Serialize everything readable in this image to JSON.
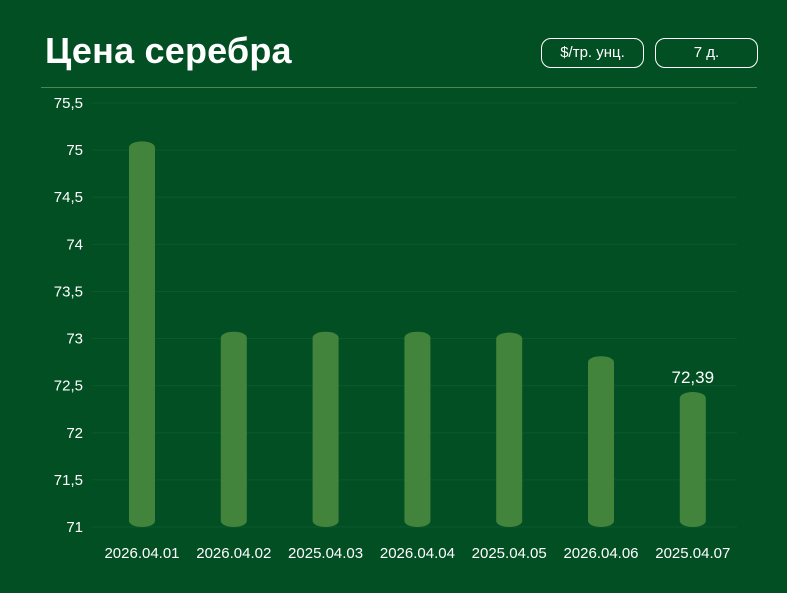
{
  "header": {
    "title": "Цена серебра",
    "unit_button": "$/тр. унц.",
    "range_button": "7 д."
  },
  "colors": {
    "background": "#024f24",
    "bar": "#43843c",
    "grid": "#0a5a2a",
    "text": "#ffffff",
    "divider": "#4a8a4a"
  },
  "chart_data": {
    "type": "bar",
    "title": "Цена серебра",
    "xlabel": "",
    "ylabel": "",
    "categories": [
      "2026.04.01",
      "2026.04.02",
      "2025.04.03",
      "2026.04.04",
      "2025.04.05",
      "2026.04.06",
      "2025.04.07"
    ],
    "values": [
      75.05,
      73.03,
      73.03,
      73.03,
      73.02,
      72.77,
      72.39
    ],
    "ylim": [
      71,
      75.5
    ],
    "yticks": [
      "71",
      "71,5",
      "72",
      "72,5",
      "73",
      "73,5",
      "74",
      "74,5",
      "75",
      "75,5"
    ],
    "ytick_values": [
      71,
      71.5,
      72,
      72.5,
      73,
      73.5,
      74,
      74.5,
      75,
      75.5
    ],
    "annotations": [
      {
        "category": "2025.04.07",
        "label": "72,39"
      }
    ],
    "grid": true,
    "legend": "none"
  }
}
